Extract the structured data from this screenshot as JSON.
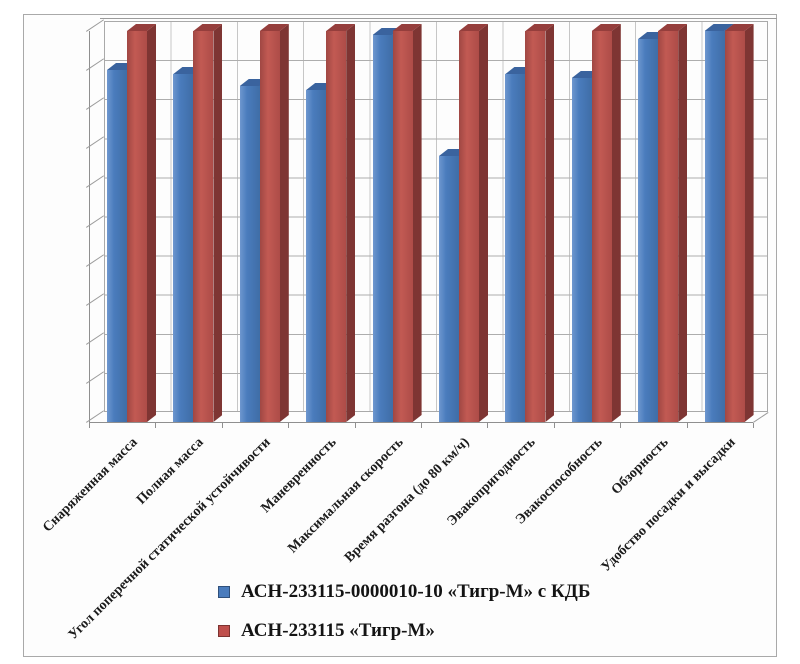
{
  "chart_data": {
    "type": "bar",
    "variant": "3d-clustered-column",
    "title": "",
    "xlabel": "",
    "ylabel": "",
    "ylim": [
      0,
      10
    ],
    "grid": true,
    "gridline_divisions": 10,
    "value_axis_labels_visible": false,
    "legend_position": "bottom-left",
    "categories": [
      "Снаряженная масса",
      "Полная масса",
      "Угол поперечной статической устойчивости",
      "Маневренность",
      "Максимальная скорость",
      "Время разгона (до 80 км/ч)",
      "Эвакопригодность",
      "Эвакоспособность",
      "Обзорность",
      "Удобство посадки и высадки"
    ],
    "series": [
      {
        "name": "АСН-233115-0000010-10 «Тигр-М» с КДБ",
        "color": "#4a7cbd",
        "values": [
          9.0,
          8.9,
          8.6,
          8.5,
          9.9,
          6.8,
          8.9,
          8.8,
          9.8,
          10.0
        ]
      },
      {
        "name": "АСН-233115 «Тигр-М»",
        "color": "#bf4f4c",
        "values": [
          10,
          10,
          10,
          10,
          10,
          10,
          10,
          10,
          10,
          10
        ]
      }
    ]
  }
}
